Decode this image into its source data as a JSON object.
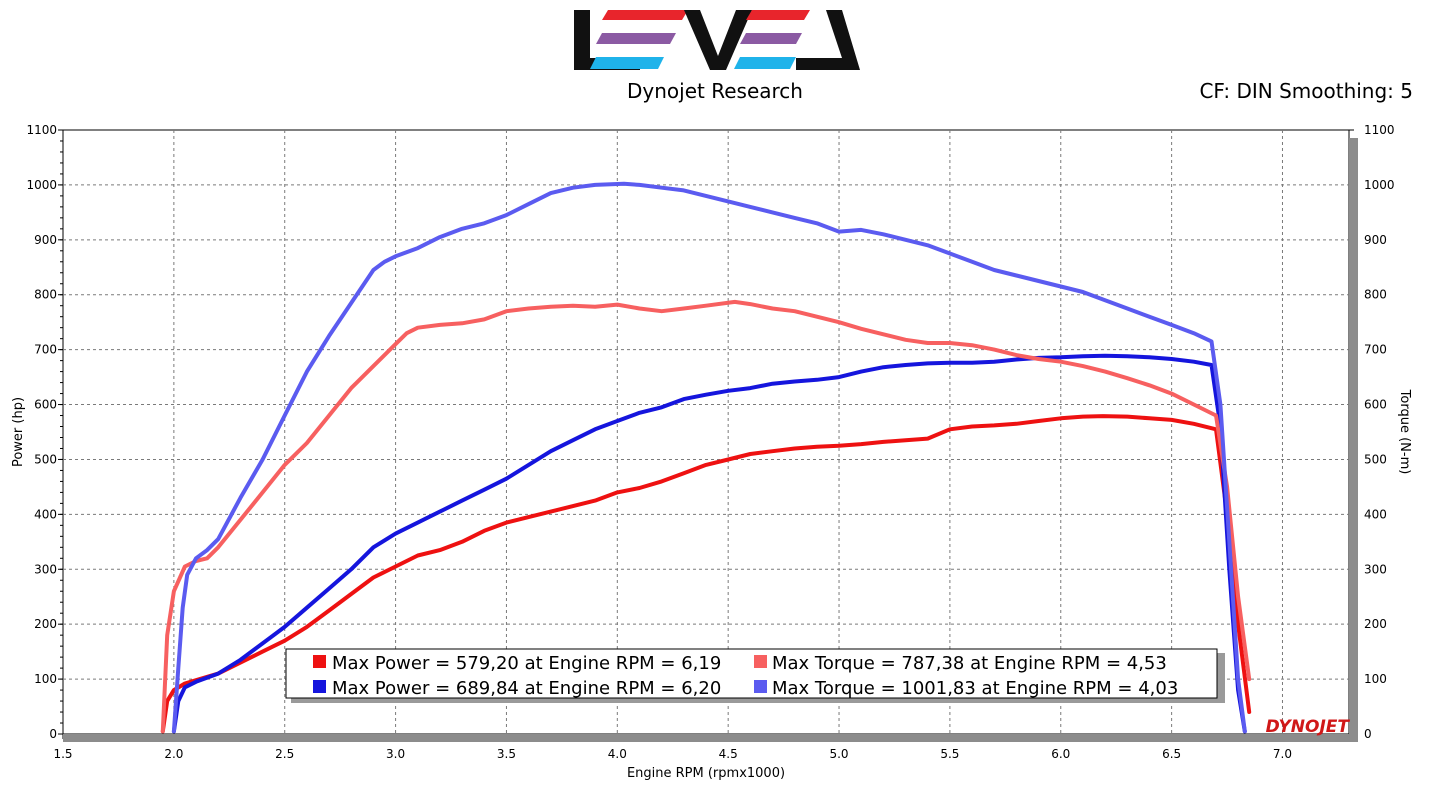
{
  "header": {
    "logo_text": "LEVEL",
    "subtitle": "Dynojet Research",
    "settings": "CF: DIN Smoothing: 5",
    "watermark": "DYNOJET"
  },
  "colors": {
    "power_run1": "#ee1111",
    "power_run2": "#1515dd",
    "torque_run1": "#f76060",
    "torque_run2": "#5b5bf0",
    "logo_red": "#e8252c",
    "logo_purple": "#8b5aa3",
    "logo_cyan": "#1fb3ea"
  },
  "chart_data": {
    "type": "line",
    "title": "Dynojet Research",
    "xlabel": "Engine RPM (rpmx1000)",
    "ylabel": "Power (hp)",
    "y2label": "Torque (N-m)",
    "xlim": [
      1.5,
      7.3
    ],
    "ylim": [
      0,
      1100
    ],
    "y2lim": [
      0,
      1100
    ],
    "xticks": [
      "1.5",
      "2.0",
      "2.5",
      "3.0",
      "3.5",
      "4.0",
      "4.5",
      "5.0",
      "5.5",
      "6.0",
      "6.5",
      "7.0"
    ],
    "yticks": [
      "0",
      "100",
      "200",
      "300",
      "400",
      "500",
      "600",
      "700",
      "800",
      "900",
      "1000",
      "1100"
    ],
    "grid": true,
    "legend_position": "bottom-center",
    "series": [
      {
        "name": "Max Power = 579,20 at Engine RPM = 6,19",
        "axis": "left",
        "color_key": "power_run1",
        "x": [
          1.95,
          1.97,
          2.0,
          2.05,
          2.1,
          2.2,
          2.3,
          2.4,
          2.5,
          2.6,
          2.7,
          2.8,
          2.9,
          3.0,
          3.1,
          3.2,
          3.3,
          3.4,
          3.5,
          3.6,
          3.7,
          3.8,
          3.9,
          4.0,
          4.1,
          4.2,
          4.3,
          4.4,
          4.5,
          4.6,
          4.7,
          4.8,
          4.9,
          5.0,
          5.1,
          5.2,
          5.3,
          5.4,
          5.5,
          5.6,
          5.7,
          5.8,
          5.9,
          6.0,
          6.1,
          6.19,
          6.3,
          6.4,
          6.5,
          6.6,
          6.7,
          6.75,
          6.8,
          6.85
        ],
        "y": [
          5,
          60,
          80,
          92,
          98,
          110,
          130,
          150,
          170,
          195,
          225,
          255,
          285,
          305,
          325,
          335,
          350,
          370,
          385,
          395,
          405,
          415,
          425,
          440,
          448,
          460,
          475,
          490,
          500,
          510,
          515,
          520,
          523,
          525,
          528,
          532,
          535,
          538,
          555,
          560,
          562,
          565,
          570,
          575,
          578,
          579,
          578,
          575,
          572,
          565,
          555,
          400,
          200,
          40
        ]
      },
      {
        "name": "Max Power = 689,84 at Engine RPM = 6,20",
        "axis": "left",
        "color_key": "power_run2",
        "x": [
          2.0,
          2.02,
          2.05,
          2.1,
          2.2,
          2.3,
          2.4,
          2.5,
          2.6,
          2.7,
          2.8,
          2.9,
          3.0,
          3.1,
          3.2,
          3.3,
          3.4,
          3.5,
          3.6,
          3.7,
          3.8,
          3.9,
          4.0,
          4.1,
          4.2,
          4.3,
          4.4,
          4.5,
          4.6,
          4.7,
          4.8,
          4.9,
          5.0,
          5.1,
          5.2,
          5.3,
          5.4,
          5.5,
          5.6,
          5.7,
          5.8,
          5.9,
          6.0,
          6.1,
          6.2,
          6.3,
          6.4,
          6.5,
          6.6,
          6.68,
          6.72,
          6.76,
          6.8,
          6.83
        ],
        "y": [
          5,
          60,
          85,
          95,
          110,
          135,
          165,
          195,
          230,
          265,
          300,
          340,
          365,
          385,
          405,
          425,
          445,
          465,
          490,
          515,
          535,
          555,
          570,
          585,
          595,
          610,
          618,
          625,
          630,
          638,
          642,
          645,
          650,
          660,
          668,
          672,
          675,
          676,
          676,
          678,
          682,
          685,
          686,
          688,
          689,
          688,
          686,
          683,
          678,
          672,
          560,
          300,
          80,
          5
        ]
      },
      {
        "name": "Max Torque = 787,38 at Engine RPM = 4,53",
        "axis": "right",
        "color_key": "torque_run1",
        "x": [
          1.95,
          1.97,
          2.0,
          2.05,
          2.1,
          2.15,
          2.2,
          2.3,
          2.4,
          2.5,
          2.6,
          2.7,
          2.8,
          2.9,
          3.0,
          3.05,
          3.1,
          3.2,
          3.3,
          3.4,
          3.5,
          3.6,
          3.7,
          3.8,
          3.9,
          4.0,
          4.1,
          4.2,
          4.3,
          4.4,
          4.53,
          4.6,
          4.7,
          4.8,
          4.9,
          5.0,
          5.1,
          5.2,
          5.3,
          5.4,
          5.5,
          5.6,
          5.7,
          5.8,
          5.9,
          6.0,
          6.1,
          6.2,
          6.3,
          6.4,
          6.5,
          6.6,
          6.7,
          6.75,
          6.8,
          6.85
        ],
        "y": [
          5,
          180,
          260,
          305,
          315,
          320,
          340,
          390,
          440,
          490,
          530,
          580,
          630,
          670,
          710,
          730,
          740,
          745,
          748,
          755,
          770,
          775,
          778,
          780,
          778,
          782,
          775,
          770,
          775,
          780,
          787,
          783,
          775,
          770,
          760,
          750,
          738,
          728,
          718,
          712,
          712,
          708,
          700,
          690,
          683,
          678,
          670,
          660,
          648,
          635,
          620,
          600,
          580,
          450,
          250,
          100
        ]
      },
      {
        "name": "Max Torque = 1001,83 at Engine RPM = 4,03",
        "axis": "right",
        "color_key": "torque_run2",
        "x": [
          2.0,
          2.02,
          2.04,
          2.06,
          2.1,
          2.15,
          2.2,
          2.3,
          2.4,
          2.5,
          2.6,
          2.7,
          2.8,
          2.9,
          2.95,
          3.0,
          3.1,
          3.2,
          3.3,
          3.4,
          3.5,
          3.6,
          3.7,
          3.8,
          3.9,
          4.03,
          4.1,
          4.2,
          4.3,
          4.4,
          4.5,
          4.6,
          4.7,
          4.8,
          4.9,
          5.0,
          5.1,
          5.2,
          5.3,
          5.4,
          5.5,
          5.6,
          5.7,
          5.8,
          5.9,
          6.0,
          6.1,
          6.2,
          6.3,
          6.4,
          6.5,
          6.6,
          6.68,
          6.72,
          6.76,
          6.8,
          6.83
        ],
        "y": [
          5,
          120,
          230,
          290,
          320,
          335,
          355,
          430,
          500,
          580,
          660,
          725,
          785,
          845,
          860,
          870,
          885,
          905,
          920,
          930,
          945,
          965,
          985,
          995,
          1000,
          1002,
          1000,
          995,
          990,
          980,
          970,
          960,
          950,
          940,
          930,
          915,
          918,
          910,
          900,
          890,
          875,
          860,
          845,
          835,
          825,
          815,
          805,
          790,
          775,
          760,
          745,
          730,
          715,
          600,
          350,
          100,
          5
        ]
      }
    ]
  }
}
